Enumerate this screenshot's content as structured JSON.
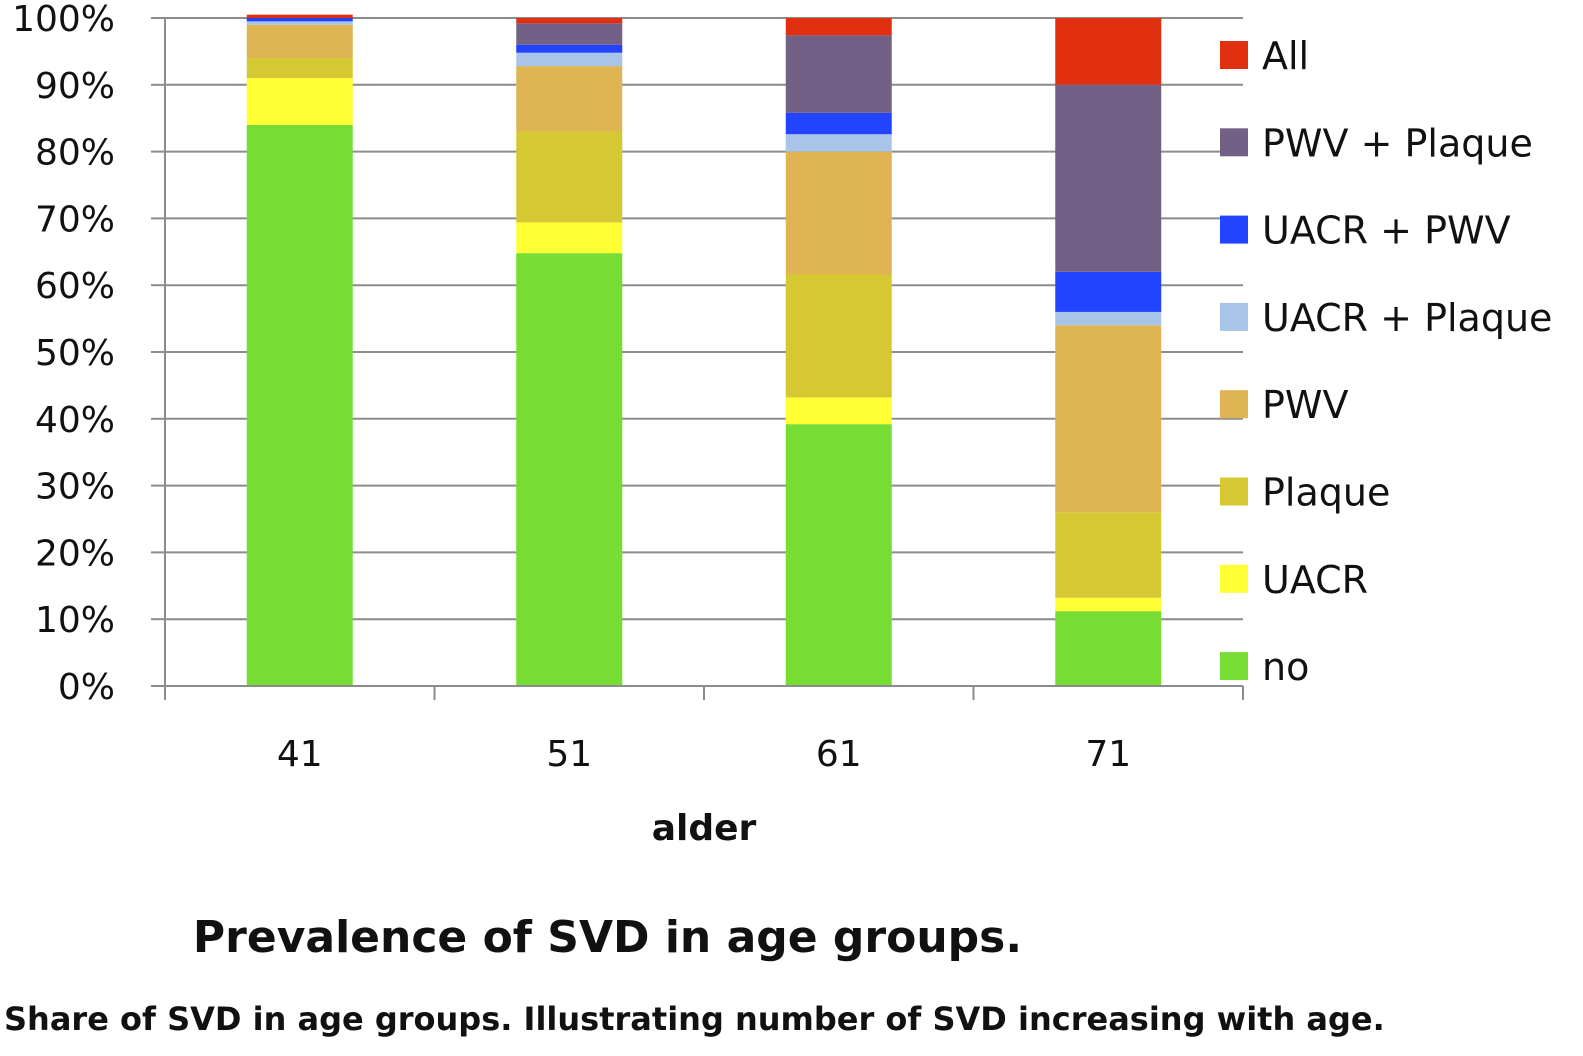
{
  "chart_data": {
    "type": "bar",
    "stacked": true,
    "normalized": true,
    "categories": [
      "41",
      "51",
      "61",
      "71"
    ],
    "xlabel": "alder",
    "ylabel": "",
    "ylim": [
      0,
      100
    ],
    "y_ticks": [
      "0%",
      "10%",
      "20%",
      "30%",
      "40%",
      "50%",
      "60%",
      "70%",
      "80%",
      "90%",
      "100%"
    ],
    "grid": true,
    "legend_position": "right",
    "series": [
      {
        "name": "no",
        "color": "#77dd33",
        "values": [
          84,
          64.8,
          39.2,
          11.2
        ]
      },
      {
        "name": "UACR",
        "color": "#ffff33",
        "values": [
          7,
          4.6,
          4.0,
          2.0
        ]
      },
      {
        "name": "Plaque",
        "color": "#d6c833",
        "values": [
          3,
          13.6,
          18.4,
          12.8
        ]
      },
      {
        "name": "PWV",
        "color": "#dfb452",
        "values": [
          5,
          9.8,
          18.4,
          28.0
        ]
      },
      {
        "name": "UACR + Plaque",
        "color": "#a8c4e8",
        "values": [
          0.5,
          2.0,
          2.6,
          2.0
        ]
      },
      {
        "name": "UACR + PWV",
        "color": "#2244ff",
        "values": [
          0.5,
          1.2,
          3.2,
          6.0
        ]
      },
      {
        "name": "PWV + Plaque",
        "color": "#726087",
        "values": [
          0,
          3.2,
          11.6,
          28.0
        ]
      },
      {
        "name": "All",
        "color": "#e03010",
        "values": [
          0.5,
          0.8,
          2.6,
          10.0
        ]
      }
    ]
  },
  "figure": {
    "title": "Prevalence of SVD in age groups.",
    "caption": "Share of SVD in age groups. Illustrating number of SVD increasing with age."
  }
}
